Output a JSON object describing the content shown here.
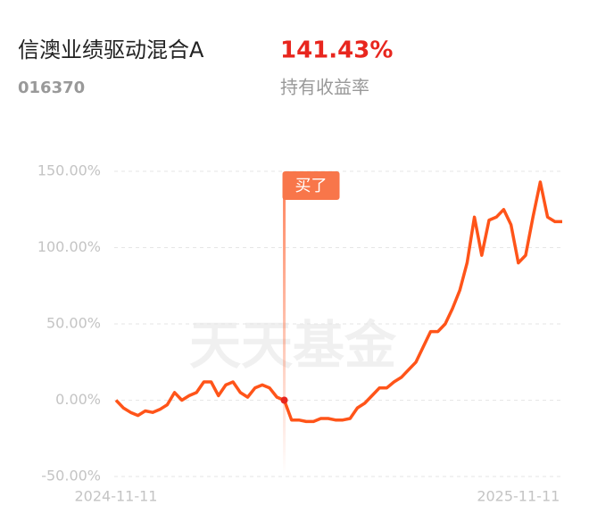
{
  "chart_data": {
    "type": "line",
    "title": "信澳业绩驱动混合A",
    "code": "016370",
    "return_value": "141.43%",
    "return_label": "持有收益率",
    "watermark": "天天基金",
    "annotation": {
      "text": "买了",
      "category_index": 23
    },
    "color": "#ff5419",
    "categories": [
      "2024-11-11",
      null,
      null,
      null,
      null,
      null,
      null,
      null,
      null,
      null,
      null,
      null,
      null,
      null,
      null,
      null,
      null,
      null,
      null,
      null,
      null,
      null,
      null,
      null,
      null,
      null,
      null,
      null,
      null,
      null,
      null,
      null,
      null,
      null,
      null,
      null,
      null,
      null,
      null,
      null,
      null,
      null,
      null,
      null,
      null,
      null,
      null,
      null,
      null,
      null,
      null,
      null,
      null,
      null,
      null,
      "2025-11-11",
      null,
      null,
      null,
      null,
      null,
      null
    ],
    "values": [
      0,
      -5,
      -8,
      -10,
      -7,
      -8,
      -6,
      -3,
      5,
      0,
      3,
      5,
      12,
      12,
      3,
      10,
      12,
      5,
      2,
      8,
      10,
      8,
      2,
      0,
      -13,
      -13,
      -14,
      -14,
      -12,
      -12,
      -13,
      -13,
      -12,
      -5,
      -2,
      3,
      8,
      8,
      12,
      15,
      20,
      25,
      35,
      45,
      45,
      50,
      60,
      72,
      90,
      120,
      95,
      118,
      120,
      125,
      115,
      90,
      95,
      120,
      143,
      120,
      117,
      117
    ],
    "ylim": [
      -50,
      150
    ],
    "yticks": [
      {
        "value": -50,
        "label": "-50.00%"
      },
      {
        "value": 0,
        "label": "0.00%"
      },
      {
        "value": 50,
        "label": "50.00%"
      },
      {
        "value": 100,
        "label": "100.00%"
      },
      {
        "value": 150,
        "label": "150.00%"
      }
    ],
    "grid": true
  }
}
